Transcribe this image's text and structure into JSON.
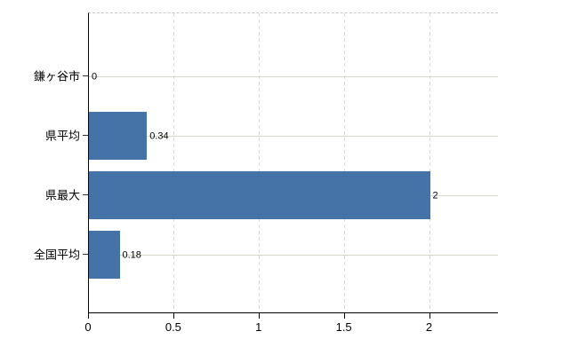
{
  "chart_data": {
    "type": "bar",
    "orientation": "horizontal",
    "title": "",
    "xlabel": "",
    "ylabel": "",
    "categories": [
      "鎌ヶ谷市",
      "県平均",
      "県最大",
      "全国平均"
    ],
    "values": [
      0,
      0.34,
      2,
      0.18
    ],
    "value_labels": [
      "0",
      "0.34",
      "2",
      "0.18"
    ],
    "x_ticks": [
      0,
      0.5,
      1,
      1.5,
      2
    ],
    "x_tick_labels": [
      "0",
      "0.5",
      "1",
      "1.5",
      "2"
    ],
    "xlim": [
      0,
      2.4
    ],
    "grid": true,
    "legend": false,
    "colors": {
      "bar": "#4572a7",
      "axis_line": "#000000",
      "vertical_gridline": "#d9d9d9",
      "horizontal_gridline": "#d2d8cb",
      "plot_top_border": "#c9c9c9",
      "label_text": "#000000",
      "background": "#ffffff"
    }
  }
}
